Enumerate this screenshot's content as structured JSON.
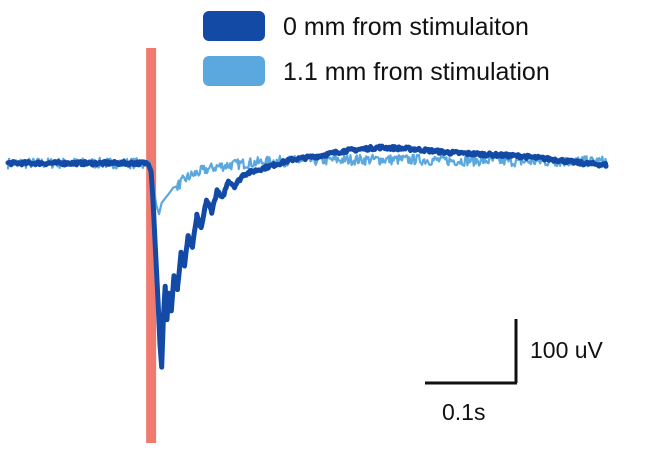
{
  "chart_data": {
    "type": "line",
    "title": "",
    "xlabel": "",
    "ylabel": "",
    "grid": false,
    "legend_position": "top-right",
    "x_unit": "s",
    "y_unit": "uV",
    "xlim": [
      -0.163,
      0.518
    ],
    "ylim": [
      -258,
      40
    ],
    "stimulus": {
      "x": 0.0,
      "color": "#f07a6e"
    },
    "scale_bar": {
      "x_label": "0.1s",
      "y_label": "100 uV",
      "x_value": 0.1,
      "y_value": 100
    },
    "series": [
      {
        "name": "0 mm from stimulaiton",
        "color": "#124aa6",
        "noise_uV": 2,
        "x": [
          -0.163,
          -0.1,
          -0.05,
          -0.02,
          -0.01,
          -0.003,
          0.0,
          0.002,
          0.005,
          0.008,
          0.01,
          0.012,
          0.014,
          0.016,
          0.018,
          0.02,
          0.023,
          0.026,
          0.03,
          0.034,
          0.038,
          0.042,
          0.047,
          0.052,
          0.057,
          0.063,
          0.069,
          0.075,
          0.081,
          0.088,
          0.095,
          0.105,
          0.12,
          0.14,
          0.16,
          0.19,
          0.22,
          0.26,
          0.3,
          0.34,
          0.38,
          0.42,
          0.46,
          0.49,
          0.518
        ],
        "y": [
          0,
          0,
          0,
          0,
          0,
          0,
          -10,
          -40,
          -100,
          -160,
          -205,
          -232,
          -175,
          -140,
          -178,
          -148,
          -168,
          -128,
          -142,
          -102,
          -118,
          -82,
          -96,
          -60,
          -75,
          -42,
          -55,
          -32,
          -40,
          -20,
          -26,
          -13,
          -8,
          -2,
          4,
          8,
          14,
          18,
          16,
          12,
          10,
          8,
          4,
          0,
          -2
        ]
      },
      {
        "name": "1.1 mm from stimulation",
        "color": "#5aa8de",
        "noise_uV": 6,
        "x": [
          -0.163,
          -0.1,
          -0.05,
          -0.02,
          -0.01,
          -0.003,
          0.0,
          0.003,
          0.006,
          0.009,
          0.012,
          0.016,
          0.02,
          0.025,
          0.03,
          0.036,
          0.042,
          0.05,
          0.06,
          0.075,
          0.09,
          0.11,
          0.14,
          0.18,
          0.22,
          0.26,
          0.3,
          0.34,
          0.38,
          0.42,
          0.46,
          0.49,
          0.518
        ],
        "y": [
          0,
          0,
          0,
          0,
          0,
          0,
          -10,
          -30,
          -48,
          -58,
          -45,
          -40,
          -35,
          -28,
          -26,
          -20,
          -16,
          -12,
          -8,
          -4,
          -2,
          0,
          2,
          3,
          4,
          4,
          4,
          3,
          3,
          2,
          2,
          2,
          2
        ]
      }
    ]
  }
}
